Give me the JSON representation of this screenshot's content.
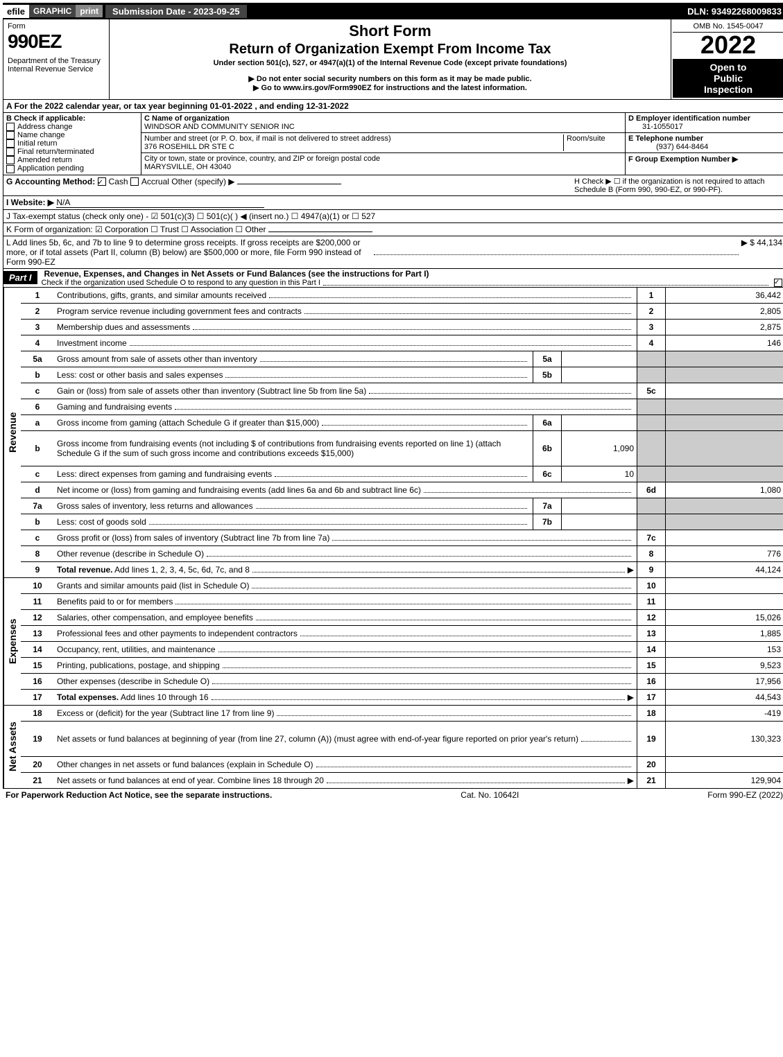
{
  "topbar": {
    "efile": "efile",
    "graphic": "GRAPHIC",
    "print": "print",
    "submission": "Submission Date - 2023-09-25",
    "dln": "DLN: 93492268009833"
  },
  "header": {
    "form_label": "Form",
    "form_number": "990EZ",
    "dept": "Department of the Treasury",
    "irs": "Internal Revenue Service",
    "short_form": "Short Form",
    "title": "Return of Organization Exempt From Income Tax",
    "subtitle": "Under section 501(c), 527, or 4947(a)(1) of the Internal Revenue Code (except private foundations)",
    "warn1": "▶ Do not enter social security numbers on this form as it may be made public.",
    "warn2": "▶ Go to www.irs.gov/Form990EZ for instructions and the latest information.",
    "omb": "OMB No. 1545-0047",
    "year": "2022",
    "open1": "Open to",
    "open2": "Public",
    "open3": "Inspection"
  },
  "section_a": "A  For the 2022 calendar year, or tax year beginning 01-01-2022  , and ending 12-31-2022",
  "b": {
    "title": "B  Check if applicable:",
    "items": [
      "Address change",
      "Name change",
      "Initial return",
      "Final return/terminated",
      "Amended return",
      "Application pending"
    ]
  },
  "c": {
    "name_label": "C Name of organization",
    "name": "WINDSOR AND COMMUNITY SENIOR INC",
    "street_label": "Number and street (or P. O. box, if mail is not delivered to street address)",
    "room_label": "Room/suite",
    "street": "376 ROSEHILL DR STE C",
    "city_label": "City or town, state or province, country, and ZIP or foreign postal code",
    "city": "MARYSVILLE, OH  43040"
  },
  "d": {
    "label": "D Employer identification number",
    "value": "31-1055017"
  },
  "e": {
    "label": "E Telephone number",
    "value": "(937) 644-8464"
  },
  "f": {
    "label": "F Group Exemption Number  ▶"
  },
  "g": {
    "label": "G Accounting Method:",
    "cash": "Cash",
    "accrual": "Accrual",
    "other": "Other (specify) ▶"
  },
  "h": {
    "text": "H  Check ▶  ☐  if the organization is not required to attach Schedule B (Form 990, 990-EZ, or 990-PF)."
  },
  "i": {
    "label": "I Website: ▶",
    "value": "N/A"
  },
  "j": {
    "text": "J Tax-exempt status (check only one) - ☑ 501(c)(3)  ☐ 501(c)(  ) ◀ (insert no.)  ☐ 4947(a)(1) or  ☐ 527"
  },
  "k": {
    "text": "K Form of organization:  ☑ Corporation   ☐ Trust   ☐ Association   ☐ Other"
  },
  "l": {
    "text": "L Add lines 5b, 6c, and 7b to line 9 to determine gross receipts. If gross receipts are $200,000 or more, or if total assets (Part II, column (B) below) are $500,000 or more, file Form 990 instead of Form 990-EZ",
    "value": "▶ $ 44,134"
  },
  "part1": {
    "label": "Part I",
    "title": "Revenue, Expenses, and Changes in Net Assets or Fund Balances (see the instructions for Part I)",
    "check_line": "Check if the organization used Schedule O to respond to any question in this Part I"
  },
  "sections": {
    "revenue": "Revenue",
    "expenses": "Expenses",
    "netassets": "Net Assets"
  },
  "lines": [
    {
      "n": "1",
      "desc": "Contributions, gifts, grants, and similar amounts received",
      "box": "1",
      "val": "36,442"
    },
    {
      "n": "2",
      "desc": "Program service revenue including government fees and contracts",
      "box": "2",
      "val": "2,805"
    },
    {
      "n": "3",
      "desc": "Membership dues and assessments",
      "box": "3",
      "val": "2,875"
    },
    {
      "n": "4",
      "desc": "Investment income",
      "box": "4",
      "val": "146"
    },
    {
      "n": "5a",
      "desc": "Gross amount from sale of assets other than inventory",
      "sub": "5a",
      "subval": "",
      "shaded": true
    },
    {
      "n": "b",
      "desc": "Less: cost or other basis and sales expenses",
      "sub": "5b",
      "subval": "",
      "shaded": true
    },
    {
      "n": "c",
      "desc": "Gain or (loss) from sale of assets other than inventory (Subtract line 5b from line 5a)",
      "box": "5c",
      "val": ""
    },
    {
      "n": "6",
      "desc": "Gaming and fundraising events",
      "shaded": true,
      "nobox": true
    },
    {
      "n": "a",
      "desc": "Gross income from gaming (attach Schedule G if greater than $15,000)",
      "sub": "6a",
      "subval": "",
      "shaded": true
    },
    {
      "n": "b",
      "desc": "Gross income from fundraising events (not including $                of contributions from fundraising events reported on line 1) (attach Schedule G if the sum of such gross income and contributions exceeds $15,000)",
      "sub": "6b",
      "subval": "1,090",
      "shaded": true,
      "tall": true
    },
    {
      "n": "c",
      "desc": "Less: direct expenses from gaming and fundraising events",
      "sub": "6c",
      "subval": "10",
      "shaded": true
    },
    {
      "n": "d",
      "desc": "Net income or (loss) from gaming and fundraising events (add lines 6a and 6b and subtract line 6c)",
      "box": "6d",
      "val": "1,080"
    },
    {
      "n": "7a",
      "desc": "Gross sales of inventory, less returns and allowances",
      "sub": "7a",
      "subval": "",
      "shaded": true
    },
    {
      "n": "b",
      "desc": "Less: cost of goods sold",
      "sub": "7b",
      "subval": "",
      "shaded": true
    },
    {
      "n": "c",
      "desc": "Gross profit or (loss) from sales of inventory (Subtract line 7b from line 7a)",
      "box": "7c",
      "val": ""
    },
    {
      "n": "8",
      "desc": "Other revenue (describe in Schedule O)",
      "box": "8",
      "val": "776"
    },
    {
      "n": "9",
      "desc": "Total revenue. Add lines 1, 2, 3, 4, 5c, 6d, 7c, and 8",
      "box": "9",
      "val": "44,124",
      "bold": true,
      "arrow": true
    }
  ],
  "exp_lines": [
    {
      "n": "10",
      "desc": "Grants and similar amounts paid (list in Schedule O)",
      "box": "10",
      "val": ""
    },
    {
      "n": "11",
      "desc": "Benefits paid to or for members",
      "box": "11",
      "val": ""
    },
    {
      "n": "12",
      "desc": "Salaries, other compensation, and employee benefits",
      "box": "12",
      "val": "15,026"
    },
    {
      "n": "13",
      "desc": "Professional fees and other payments to independent contractors",
      "box": "13",
      "val": "1,885"
    },
    {
      "n": "14",
      "desc": "Occupancy, rent, utilities, and maintenance",
      "box": "14",
      "val": "153"
    },
    {
      "n": "15",
      "desc": "Printing, publications, postage, and shipping",
      "box": "15",
      "val": "9,523"
    },
    {
      "n": "16",
      "desc": "Other expenses (describe in Schedule O)",
      "box": "16",
      "val": "17,956"
    },
    {
      "n": "17",
      "desc": "Total expenses. Add lines 10 through 16",
      "box": "17",
      "val": "44,543",
      "bold": true,
      "arrow": true
    }
  ],
  "na_lines": [
    {
      "n": "18",
      "desc": "Excess or (deficit) for the year (Subtract line 17 from line 9)",
      "box": "18",
      "val": "-419"
    },
    {
      "n": "19",
      "desc": "Net assets or fund balances at beginning of year (from line 27, column (A)) (must agree with end-of-year figure reported on prior year's return)",
      "box": "19",
      "val": "130,323",
      "tall": true
    },
    {
      "n": "20",
      "desc": "Other changes in net assets or fund balances (explain in Schedule O)",
      "box": "20",
      "val": ""
    },
    {
      "n": "21",
      "desc": "Net assets or fund balances at end of year. Combine lines 18 through 20",
      "box": "21",
      "val": "129,904",
      "arrow": true
    }
  ],
  "footer": {
    "left": "For Paperwork Reduction Act Notice, see the separate instructions.",
    "center": "Cat. No. 10642I",
    "right": "Form 990-EZ (2022)"
  }
}
